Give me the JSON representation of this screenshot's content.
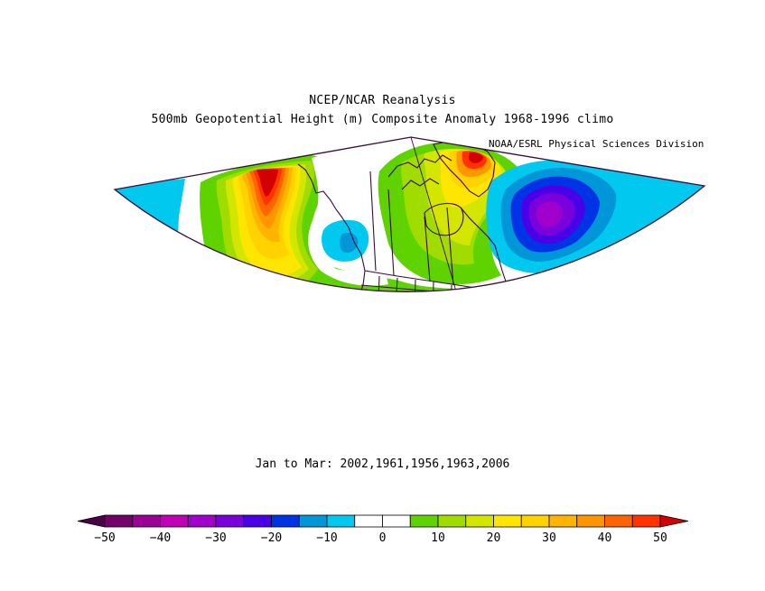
{
  "titles": {
    "line1": "NCEP/NCAR Reanalysis",
    "line2": "500mb Geopotential Height (m) Composite Anomaly 1968-1996 climo",
    "credit": "NOAA/ESRL Physical Sciences Division",
    "subtitle": "Jan to Mar: 2002,1961,1956,1963,2006"
  },
  "colorbar": {
    "labels": [
      "-50",
      "-40",
      "-30",
      "-20",
      "-10",
      "0",
      "10",
      "20",
      "30",
      "40",
      "50"
    ],
    "colors": [
      "#75006b",
      "#9a0096",
      "#c000b4",
      "#a000cc",
      "#7a00dc",
      "#4a00e6",
      "#0032e6",
      "#0096d8",
      "#00c8ee",
      "#ffffff",
      "#ffffff",
      "#5fd300",
      "#a0dc00",
      "#d2e600",
      "#ffe600",
      "#ffd200",
      "#ffb400",
      "#ff9600",
      "#ff6400",
      "#ff3200"
    ],
    "end_low": "#4b0048",
    "end_high": "#d20000"
  },
  "map": {
    "projection": "polar stereographic sector",
    "region": "North America / North Pacific / North Atlantic",
    "colors": {
      "background": "#ffffff",
      "boundary": "#3a0a3a",
      "light_blue": "#00c8ee",
      "blue": "#0096d8",
      "deep_blue": "#0032e6",
      "violet": "#4a00e6",
      "purple": "#7a00dc",
      "magenta": "#a000cc",
      "green": "#5fd300",
      "lime": "#a0dc00",
      "yellow_green": "#d2e600",
      "yellow": "#ffe600",
      "gold": "#ffd200",
      "orange_light": "#ffb400",
      "orange": "#ff9600",
      "orange_red": "#ff6400",
      "red": "#ff3200",
      "dark_red": "#d20000"
    }
  }
}
